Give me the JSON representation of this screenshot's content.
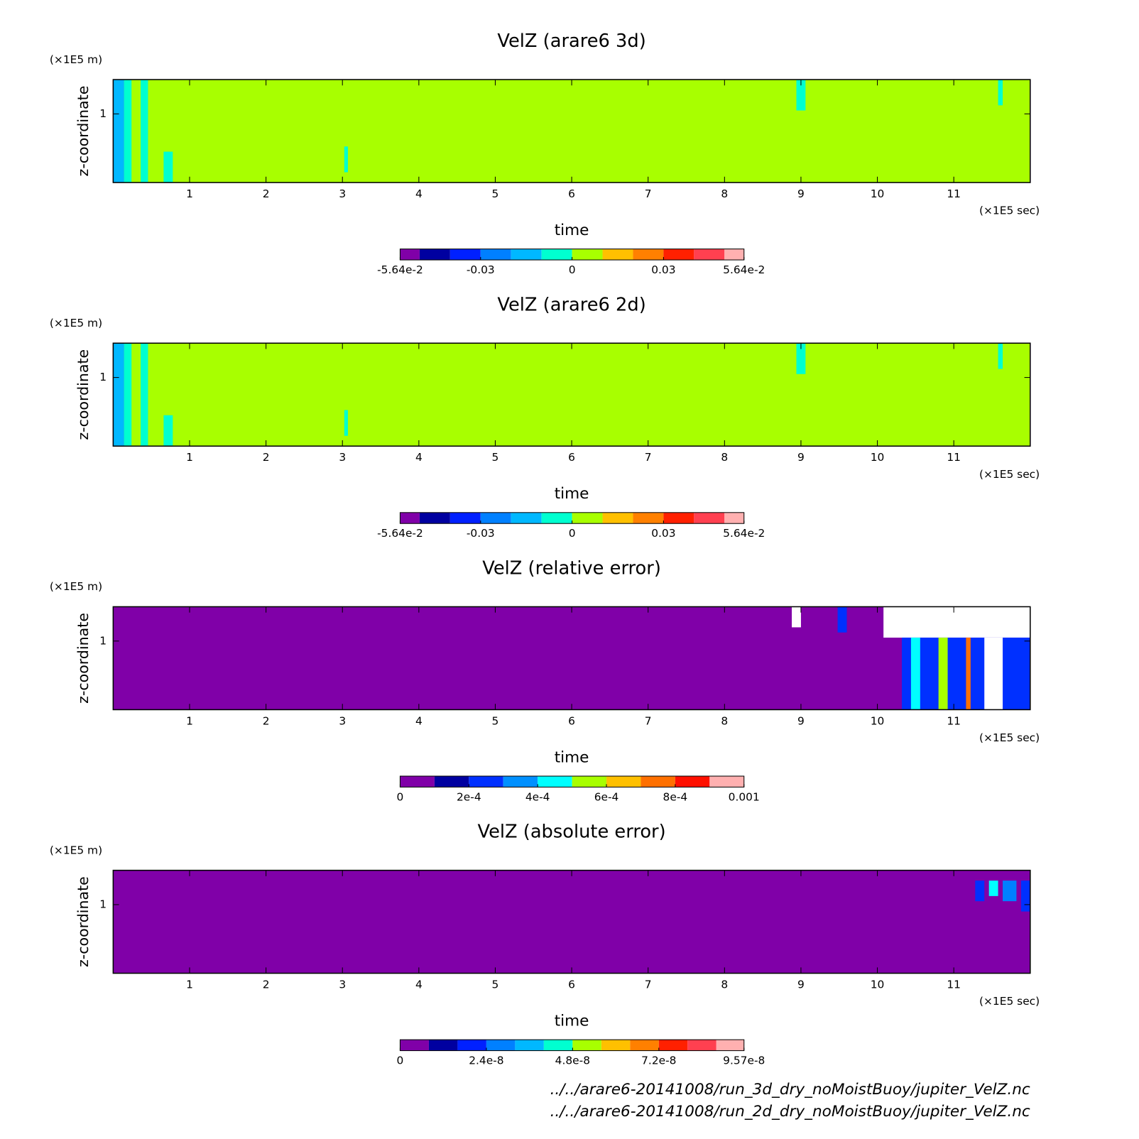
{
  "chart_data": [
    {
      "type": "heatmap",
      "title": "VelZ (arare6 3d)",
      "y_unit": "(×1E5 m)",
      "y_label": "z-coordinate",
      "x_label": "time",
      "x_unit": "(×1E5 sec)",
      "xlim": [
        0,
        12
      ],
      "xticks": [
        1,
        2,
        3,
        4,
        5,
        6,
        7,
        8,
        9,
        10,
        11
      ],
      "ylim": [
        0,
        1.5
      ],
      "yticks": [
        1
      ],
      "levels": [
        -0.0564,
        -0.05,
        -0.04,
        -0.03,
        -0.02,
        -0.01,
        0,
        0.01,
        0.02,
        0.03,
        0.04,
        0.05,
        0.0564
      ],
      "level_colors": [
        "#8000a8",
        "#0000a0",
        "#0020ff",
        "#0080ff",
        "#00b8ff",
        "#00ffd0",
        "#a8ff00",
        "#ffc000",
        "#ff8000",
        "#ff2000",
        "#ff4050",
        "#ffb0b0"
      ],
      "cticks": [
        {
          "value": -0.0564,
          "label": "-5.64e-2"
        },
        -0.03,
        0,
        0.03,
        {
          "value": 0.0564,
          "label": "5.64e-2"
        }
      ]
    },
    {
      "type": "heatmap",
      "title": "VelZ (arare6 2d)",
      "y_unit": "(×1E5 m)",
      "y_label": "z-coordinate",
      "x_label": "time",
      "x_unit": "(×1E5 sec)",
      "xlim": [
        0,
        12
      ],
      "xticks": [
        1,
        2,
        3,
        4,
        5,
        6,
        7,
        8,
        9,
        10,
        11
      ],
      "ylim": [
        0,
        1.5
      ],
      "yticks": [
        1
      ],
      "levels": [
        -0.0564,
        -0.05,
        -0.04,
        -0.03,
        -0.02,
        -0.01,
        0,
        0.01,
        0.02,
        0.03,
        0.04,
        0.05,
        0.0564
      ],
      "level_colors": [
        "#8000a8",
        "#0000a0",
        "#0020ff",
        "#0080ff",
        "#00b8ff",
        "#00ffd0",
        "#a8ff00",
        "#ffc000",
        "#ff8000",
        "#ff2000",
        "#ff4050",
        "#ffb0b0"
      ],
      "cticks": [
        {
          "value": -0.0564,
          "label": "-5.64e-2"
        },
        -0.03,
        0,
        0.03,
        {
          "value": 0.0564,
          "label": "5.64e-2"
        }
      ]
    },
    {
      "type": "heatmap",
      "title": "VelZ (relative error)",
      "y_unit": "(×1E5 m)",
      "y_label": "z-coordinate",
      "x_label": "time",
      "x_unit": "(×1E5 sec)",
      "xlim": [
        0,
        12
      ],
      "xticks": [
        1,
        2,
        3,
        4,
        5,
        6,
        7,
        8,
        9,
        10,
        11
      ],
      "ylim": [
        0,
        1.5
      ],
      "yticks": [
        1
      ],
      "levels": [
        0,
        0.0001,
        0.0002,
        0.0003,
        0.0004,
        0.0005,
        0.0006,
        0.0007,
        0.0008,
        0.0009,
        0.001
      ],
      "level_colors": [
        "#8000a8",
        "#0000a0",
        "#0030ff",
        "#0090ff",
        "#00ffff",
        "#a8ff00",
        "#ffc000",
        "#ff7000",
        "#ff1000",
        "#ffb0b0"
      ],
      "cticks": [
        0,
        {
          "value": 0.0002,
          "label": "2e-4"
        },
        {
          "value": 0.0004,
          "label": "4e-4"
        },
        {
          "value": 0.0006,
          "label": "6e-4"
        },
        {
          "value": 0.0008,
          "label": "8e-4"
        },
        0.001
      ]
    },
    {
      "type": "heatmap",
      "title": "VelZ (absolute error)",
      "y_unit": "(×1E5 m)",
      "y_label": "z-coordinate",
      "x_label": "time",
      "x_unit": "(×1E5 sec)",
      "xlim": [
        0,
        12
      ],
      "xticks": [
        1,
        2,
        3,
        4,
        5,
        6,
        7,
        8,
        9,
        10,
        11
      ],
      "ylim": [
        0,
        1.5
      ],
      "yticks": [
        1
      ],
      "levels": [
        0,
        8e-09,
        1.6e-08,
        2.4e-08,
        3.2e-08,
        4e-08,
        4.8e-08,
        5.6e-08,
        6.4e-08,
        7.2e-08,
        8e-08,
        8.8e-08,
        9.57e-08
      ],
      "level_colors": [
        "#8000a8",
        "#0000a0",
        "#0020ff",
        "#0080ff",
        "#00b8ff",
        "#00ffd0",
        "#a8ff00",
        "#ffc000",
        "#ff8000",
        "#ff2000",
        "#ff4050",
        "#ffb0b0"
      ],
      "cticks": [
        0,
        2.4e-08,
        4.8e-08,
        7.2e-08,
        9.57e-08
      ]
    }
  ],
  "footer": [
    "../../arare6-20141008/run_3d_dry_noMoistBuoy/jupiter_VelZ.nc",
    "../../arare6-20141008/run_2d_dry_noMoistBuoy/jupiter_VelZ.nc"
  ]
}
